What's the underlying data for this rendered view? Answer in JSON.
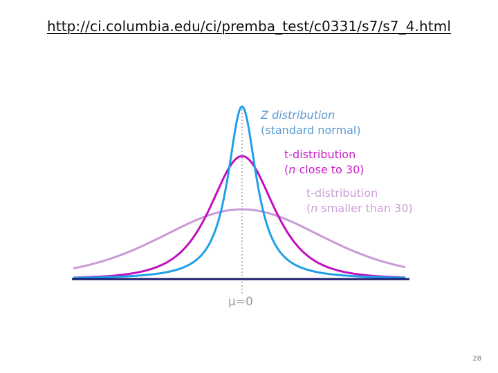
{
  "slide": {
    "url_text": "http://ci.columbia.edu/ci/premba_test/c0331/s7/s7_4.html",
    "page_number": "28"
  },
  "diagram": {
    "labels": {
      "z_line1": "Z distribution",
      "z_line2": "(standard normal)",
      "t30_line1": "t-distribution",
      "t30_line2_prefix": "(",
      "t30_line2_n": "n",
      "t30_line2_suffix": " close to 30)",
      "tsmall_line1": "t-distribution",
      "tsmall_line2_prefix": "(",
      "tsmall_line2_n": "n",
      "tsmall_line2_suffix": " smaller than 30)",
      "mu_label": "μ=0"
    },
    "colors": {
      "z_curve": "#1ea0e8",
      "t30_curve": "#c010c0",
      "tsmall_curve": "#c89ad8",
      "baseline": "#1c1c6e",
      "mean_line": "#b0b0b0"
    }
  }
}
